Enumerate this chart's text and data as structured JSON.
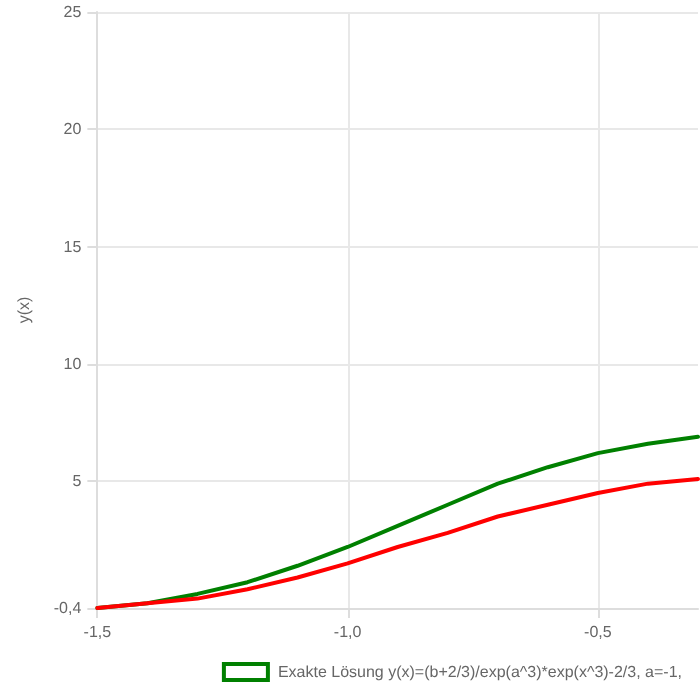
{
  "chart_data": {
    "type": "line",
    "ylabel": "y(x)",
    "x": [
      -1.5,
      -1.4,
      -1.3,
      -1.2,
      -1.1,
      -1.0,
      -0.9,
      -0.8,
      -0.7,
      -0.6,
      -0.5,
      -0.4,
      -0.3
    ],
    "series": [
      {
        "name": "Exakte Lösung y(x)=(b+2/3)/exp(a^3)*exp(x^3)-2/3, a=-1,",
        "color": "#008000",
        "values": [
          -0.4,
          -0.2,
          0.2,
          0.7,
          1.4,
          2.2,
          3.1,
          4.0,
          4.9,
          5.6,
          6.2,
          6.6,
          6.9
        ]
      },
      {
        "color": "#ff0000",
        "values": [
          -0.4,
          -0.2,
          0.0,
          0.4,
          0.9,
          1.5,
          2.2,
          2.8,
          3.5,
          4.0,
          4.5,
          4.9,
          5.1
        ]
      }
    ],
    "xlim": [
      -1.5,
      -0.3
    ],
    "xticks": [
      {
        "value": -1.5,
        "label": "-1,5"
      },
      {
        "value": -1.0,
        "label": "-1,0"
      },
      {
        "value": -0.5,
        "label": "-0,5"
      }
    ],
    "ylim": [
      -0.4,
      25
    ],
    "yticks": [
      {
        "value": -0.4,
        "label": "-0,4"
      },
      5,
      10,
      15,
      20,
      25
    ],
    "grid": true,
    "legend": "bottom right",
    "marker": "none",
    "line_style": "solid"
  }
}
